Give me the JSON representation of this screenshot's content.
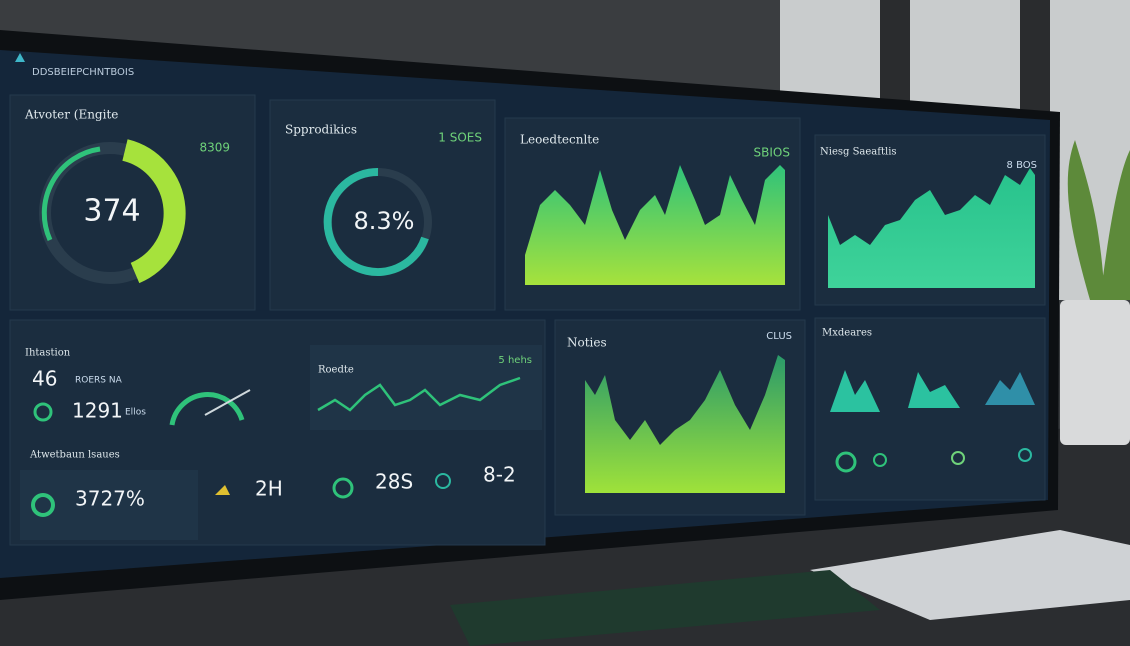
{
  "header": {
    "title": "DDSBEIEPCHNTBOIS"
  },
  "panels": [
    {
      "title": "Atvoter (Engite",
      "value": "374",
      "note": "8309"
    },
    {
      "title": "Spprodikics",
      "value": "8.3%",
      "note": "1 SOES"
    },
    {
      "title": "Leoedtecnlte",
      "note": "SBIOS"
    },
    {
      "title": "Niesg Saeaftlis",
      "note": "8 BOS"
    },
    {
      "title": "Ihtastion"
    },
    {
      "title": "Noties",
      "note": "CLUS"
    },
    {
      "title": "Mxdeares"
    }
  ],
  "stats": [
    {
      "value": "46",
      "label": "ROERS NA"
    },
    {
      "value": "1291",
      "label": "Ellos"
    }
  ],
  "trend": {
    "title": "Roedte",
    "note": "5 hehs"
  },
  "issues": {
    "title": "Atwetbaun lsaues",
    "values": [
      "3727%",
      "2H",
      "28S",
      "8-2"
    ]
  }
}
